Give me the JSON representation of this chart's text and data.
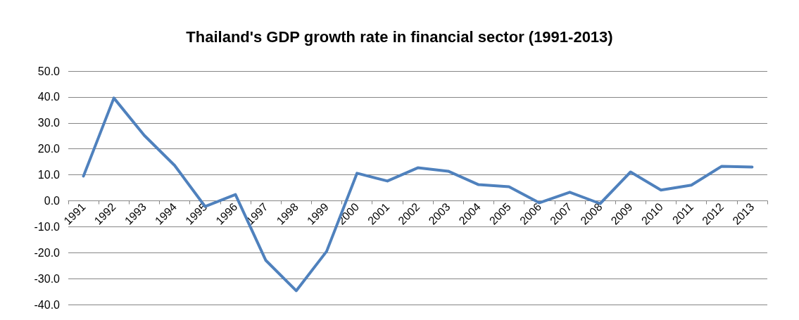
{
  "chart_data": {
    "type": "line",
    "title": "Thailand's GDP growth rate in financial sector (1991-2013)",
    "categories": [
      "1991",
      "1992",
      "1993",
      "1994",
      "1995",
      "1996",
      "1997",
      "1998",
      "1999",
      "2000",
      "2001",
      "2002",
      "2003",
      "2004",
      "2005",
      "2006",
      "2007",
      "2008",
      "2009",
      "2010",
      "2011",
      "2012",
      "2013"
    ],
    "series": [
      {
        "color": "#4f81bd",
        "values": [
          9.5,
          39.6,
          25.2,
          13.6,
          -2.2,
          2.4,
          -23.0,
          -34.7,
          -19.5,
          10.6,
          7.6,
          12.7,
          11.4,
          6.2,
          5.4,
          -0.8,
          3.3,
          -1.1,
          11.1,
          4.1,
          6.0,
          13.3,
          13.0
        ]
      }
    ],
    "ylim": [
      -40,
      50
    ],
    "yticks": [
      {
        "value": -40,
        "label": "-40.0"
      },
      {
        "value": -30,
        "label": "-30.0"
      },
      {
        "value": -20,
        "label": "-20.0"
      },
      {
        "value": -10,
        "label": "-10.0"
      },
      {
        "value": 0,
        "label": "0.0"
      },
      {
        "value": 10,
        "label": "10.0"
      },
      {
        "value": 20,
        "label": "20.0"
      },
      {
        "value": 30,
        "label": "30.0"
      },
      {
        "value": 40,
        "label": "40.0"
      },
      {
        "value": 50,
        "label": "50.0"
      }
    ],
    "grid": "y",
    "marker": "none",
    "line_style": "solid"
  }
}
